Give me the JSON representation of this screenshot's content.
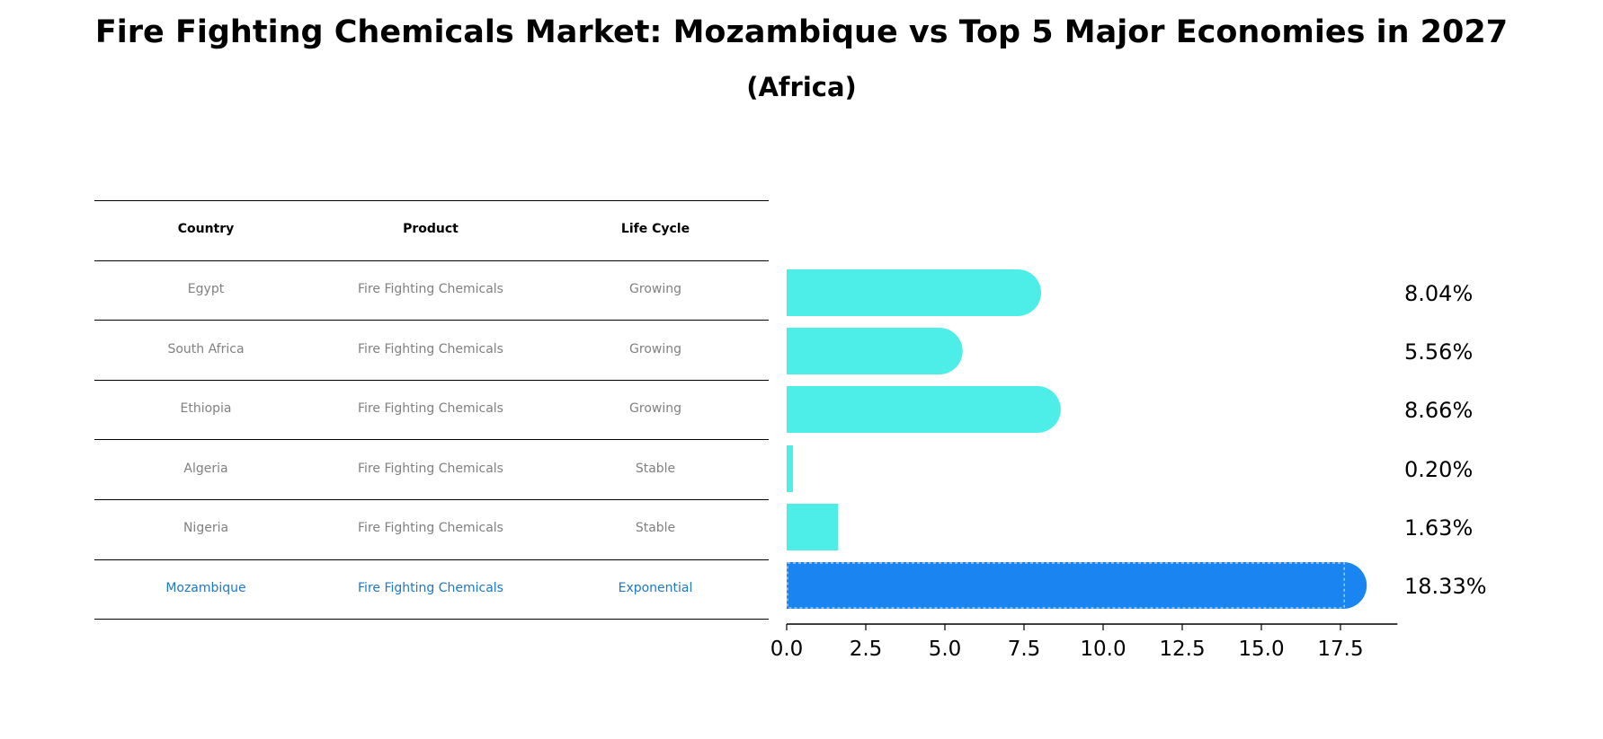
{
  "title": "Fire Fighting Chemicals Market: Mozambique vs Top 5 Major Economies in 2027",
  "subtitle": "(Africa)",
  "table": {
    "headers": [
      "Country",
      "Product",
      "Life Cycle"
    ],
    "rows": [
      [
        "Egypt",
        "Fire Fighting Chemicals",
        "Growing"
      ],
      [
        "South Africa",
        "Fire Fighting Chemicals",
        "Growing"
      ],
      [
        "Ethiopia",
        "Fire Fighting Chemicals",
        "Growing"
      ],
      [
        "Algeria",
        "Fire Fighting Chemicals",
        "Stable"
      ],
      [
        "Nigeria",
        "Fire Fighting Chemicals",
        "Stable"
      ],
      [
        "Mozambique",
        "Fire Fighting Chemicals",
        "Exponential"
      ]
    ],
    "highlight_row": 5
  },
  "colors": {
    "bar": "#4dede8",
    "highlight_bar": "#1a85f0",
    "highlight_text": "#1f77c8",
    "row_text": "#808080"
  },
  "chart_data": {
    "type": "bar",
    "orientation": "horizontal",
    "categories": [
      "Egypt",
      "South Africa",
      "Ethiopia",
      "Algeria",
      "Nigeria",
      "Mozambique"
    ],
    "values": [
      8.04,
      5.56,
      8.66,
      0.2,
      1.63,
      18.33
    ],
    "value_labels": [
      "8.04%",
      "5.56%",
      "8.66%",
      "0.20%",
      "1.63%",
      "18.33%"
    ],
    "xlim": [
      0,
      19.3
    ],
    "xticks": [
      0,
      2.5,
      5,
      7.5,
      10,
      12.5,
      15,
      17.5
    ],
    "xtick_labels": [
      "0.0",
      "2.5",
      "5.0",
      "7.5",
      "10.0",
      "12.5",
      "15.0",
      "17.5"
    ],
    "highlight_index": 5,
    "grid": false
  }
}
